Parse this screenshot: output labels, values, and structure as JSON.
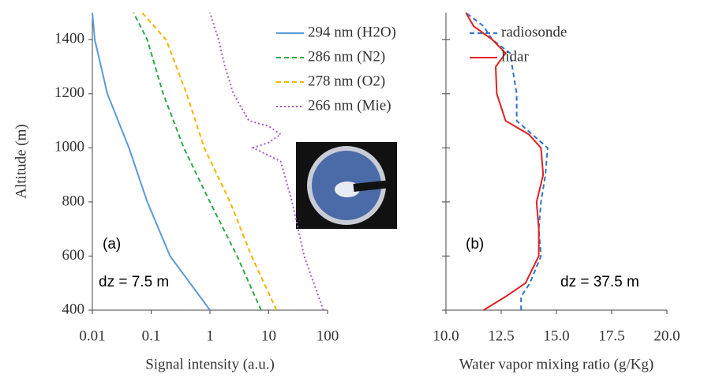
{
  "chart_data": [
    {
      "type": "line",
      "xscale": "log",
      "xlabel": "Signal intensity (a.u.)",
      "ylabel": "Altitude (m)",
      "xlim": [
        0.01,
        100
      ],
      "xticks": [
        0.01,
        0.1,
        1,
        10,
        100
      ],
      "ylim": [
        400,
        1500
      ],
      "yticks": [
        400,
        600,
        800,
        1000,
        1200,
        1400
      ],
      "legend": "upper right",
      "series": [
        {
          "name": "294 nm (H2O)",
          "color": "#5b9bd5",
          "dash": "solid",
          "y": [
            400,
            600,
            800,
            1000,
            1200,
            1400,
            1500
          ],
          "values": [
            1.0,
            0.21,
            0.086,
            0.042,
            0.018,
            0.011,
            0.01
          ]
        },
        {
          "name": "286 nm (N2)",
          "color": "#2ea84a",
          "dash": "dashed",
          "y": [
            400,
            600,
            800,
            1000,
            1200,
            1400,
            1500
          ],
          "values": [
            7.4,
            2.9,
            1.0,
            0.36,
            0.16,
            0.086,
            0.05
          ]
        },
        {
          "name": "278 nm (O2)",
          "color": "#f5b400",
          "dash": "dashed",
          "y": [
            400,
            600,
            800,
            1000,
            1200,
            1400,
            1500
          ],
          "values": [
            13.6,
            5.1,
            2.2,
            0.8,
            0.4,
            0.18,
            0.07
          ]
        },
        {
          "name": "266 nm (Mie)",
          "color": "#a05cc8",
          "dash": "dotted",
          "y": [
            400,
            600,
            800,
            950,
            1000,
            1020,
            1050,
            1080,
            1100,
            1200,
            1300,
            1400,
            1500
          ],
          "values": [
            85,
            40,
            25,
            16,
            5.4,
            10,
            16,
            10,
            4.6,
            2.5,
            1.8,
            1.4,
            1.0
          ]
        }
      ],
      "annotations": [
        "(a)",
        "dz = 7.5 m"
      ]
    },
    {
      "type": "line",
      "xlabel": "Water vapor mixing ratio (g/Kg)",
      "xlim": [
        10,
        20
      ],
      "xticks": [
        {
          "value": 10,
          "label": "10.0"
        },
        12.5,
        {
          "value": 15,
          "label": "15.0"
        },
        17.5,
        {
          "value": 20,
          "label": "20.0"
        }
      ],
      "ylim": [
        400,
        1500
      ],
      "yticks": [
        400,
        600,
        800,
        1000,
        1200,
        1400
      ],
      "legend": "upper right",
      "series": [
        {
          "name": "radiosonde",
          "color": "#2e75c6",
          "dash": "dashed",
          "y": [
            400,
            450,
            500,
            600,
            700,
            800,
            900,
            1000,
            1050,
            1100,
            1200,
            1300,
            1350,
            1400,
            1450,
            1500
          ],
          "values": [
            13.4,
            13.4,
            13.8,
            14.3,
            14.2,
            14.3,
            14.5,
            14.6,
            13.9,
            13.2,
            13.2,
            13.0,
            12.9,
            12.1,
            11.7,
            10.9
          ]
        },
        {
          "name": "lidar",
          "color": "#e02020",
          "dash": "solid",
          "y": [
            400,
            450,
            500,
            600,
            700,
            800,
            900,
            1000,
            1050,
            1100,
            1200,
            1300,
            1350,
            1400,
            1450,
            1500
          ],
          "values": [
            11.7,
            12.7,
            13.6,
            14.2,
            14.2,
            14.1,
            14.4,
            14.3,
            13.75,
            12.7,
            12.3,
            12.25,
            12.7,
            12.1,
            11.25,
            10.9
          ]
        }
      ],
      "annotations": [
        "(b)",
        "dz = 37.5 m"
      ]
    }
  ]
}
